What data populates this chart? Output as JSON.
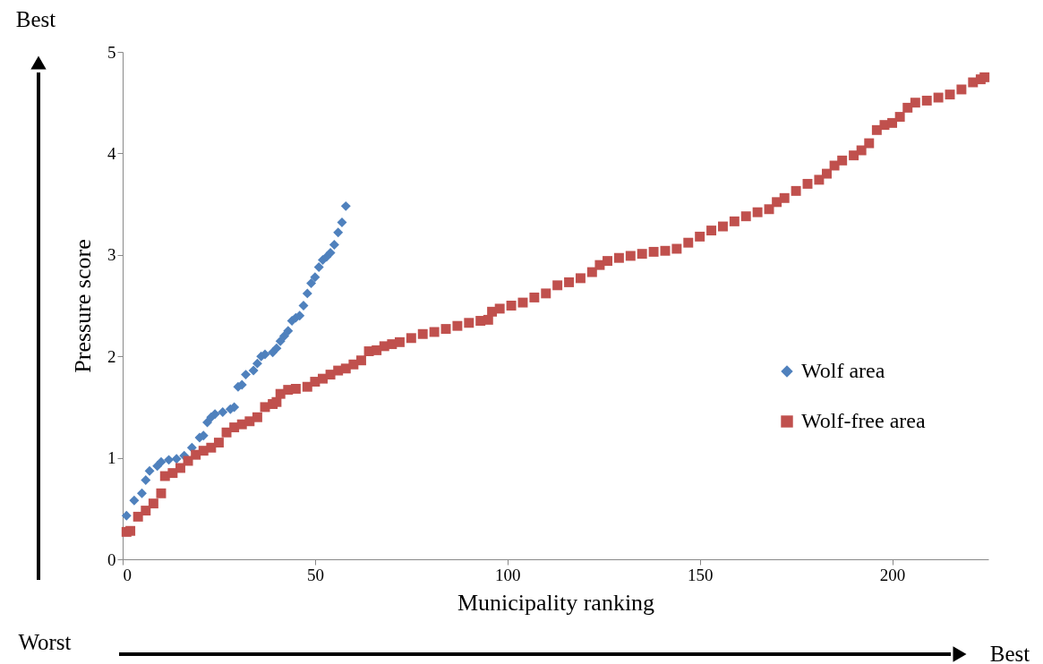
{
  "chart_data": {
    "type": "scatter",
    "xlabel": "Municipality ranking",
    "ylabel": "Pressure score",
    "annotations": [
      "Best",
      "Worst",
      "Best"
    ],
    "xlim": [
      0,
      225
    ],
    "xticks": [
      0,
      50,
      100,
      150,
      200
    ],
    "ylim": [
      0,
      5
    ],
    "yticks": [
      0,
      1,
      2,
      3,
      4,
      5
    ],
    "grid": false,
    "legend": "right",
    "series": [
      {
        "name": "Wolf area",
        "color": "#4f81bd",
        "marker": "diamond",
        "x": [
          1,
          3,
          5,
          6,
          7,
          9,
          10,
          12,
          14,
          16,
          18,
          20,
          21,
          22,
          23,
          24,
          26,
          28,
          29,
          30,
          31,
          32,
          34,
          35,
          36,
          37,
          39,
          40,
          41,
          42,
          43,
          44,
          45,
          46,
          47,
          48,
          49,
          50,
          51,
          52,
          53,
          54,
          55,
          56,
          57,
          58
        ],
        "values": [
          0.43,
          0.58,
          0.65,
          0.78,
          0.87,
          0.92,
          0.96,
          0.98,
          0.99,
          1.02,
          1.1,
          1.2,
          1.22,
          1.35,
          1.4,
          1.43,
          1.45,
          1.48,
          1.5,
          1.7,
          1.72,
          1.82,
          1.86,
          1.93,
          2.0,
          2.02,
          2.04,
          2.08,
          2.15,
          2.2,
          2.25,
          2.35,
          2.38,
          2.4,
          2.5,
          2.62,
          2.72,
          2.78,
          2.88,
          2.95,
          2.98,
          3.02,
          3.1,
          3.22,
          3.32,
          3.48
        ]
      },
      {
        "name": "Wolf-free area",
        "color": "#c0504d",
        "marker": "square",
        "x": [
          1,
          2,
          4,
          6,
          8,
          10,
          11,
          13,
          15,
          17,
          19,
          21,
          23,
          25,
          27,
          29,
          31,
          33,
          35,
          37,
          39,
          40,
          41,
          43,
          45,
          48,
          50,
          52,
          54,
          56,
          58,
          60,
          62,
          64,
          66,
          68,
          70,
          72,
          75,
          78,
          81,
          84,
          87,
          90,
          93,
          95,
          96,
          98,
          101,
          104,
          107,
          110,
          113,
          116,
          119,
          122,
          124,
          126,
          129,
          132,
          135,
          138,
          141,
          144,
          147,
          150,
          153,
          156,
          159,
          162,
          165,
          168,
          170,
          172,
          175,
          178,
          181,
          183,
          185,
          187,
          190,
          192,
          194,
          196,
          198,
          200,
          202,
          204,
          206,
          209,
          212,
          215,
          218,
          221,
          223,
          224
        ],
        "values": [
          0.27,
          0.28,
          0.42,
          0.48,
          0.55,
          0.65,
          0.82,
          0.85,
          0.9,
          0.97,
          1.03,
          1.07,
          1.1,
          1.15,
          1.25,
          1.3,
          1.33,
          1.36,
          1.4,
          1.5,
          1.53,
          1.55,
          1.63,
          1.67,
          1.68,
          1.7,
          1.75,
          1.78,
          1.82,
          1.86,
          1.88,
          1.92,
          1.96,
          2.05,
          2.06,
          2.1,
          2.12,
          2.14,
          2.18,
          2.22,
          2.24,
          2.27,
          2.3,
          2.33,
          2.35,
          2.36,
          2.44,
          2.47,
          2.5,
          2.53,
          2.58,
          2.62,
          2.7,
          2.73,
          2.77,
          2.83,
          2.9,
          2.94,
          2.97,
          2.99,
          3.01,
          3.03,
          3.04,
          3.06,
          3.12,
          3.18,
          3.24,
          3.28,
          3.33,
          3.38,
          3.42,
          3.45,
          3.52,
          3.56,
          3.63,
          3.7,
          3.74,
          3.8,
          3.88,
          3.93,
          3.98,
          4.03,
          4.1,
          4.23,
          4.28,
          4.3,
          4.36,
          4.45,
          4.5,
          4.52,
          4.55,
          4.58,
          4.63,
          4.7,
          4.73,
          4.75
        ]
      }
    ]
  }
}
